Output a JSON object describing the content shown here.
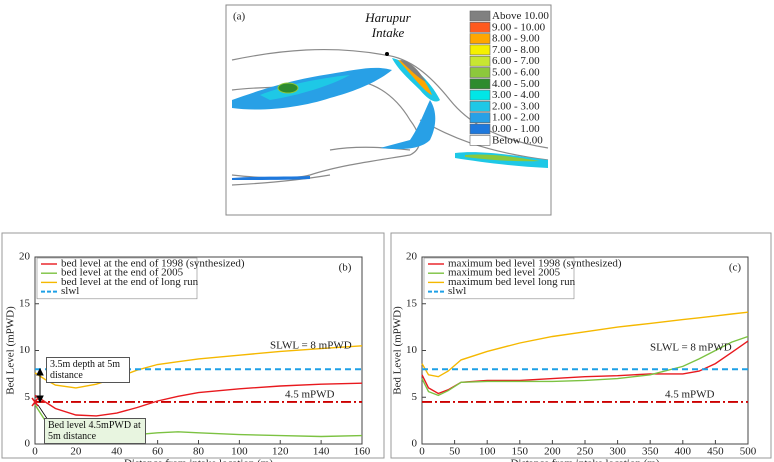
{
  "chart_data": [
    {
      "type": "contour",
      "panel_label": "(a)",
      "title": "Harupur Intake",
      "legend": [
        {
          "name": "Above 10.00",
          "color": "#808080"
        },
        {
          "name": "9.00 - 10.00",
          "color": "#ff5a1e"
        },
        {
          "name": "8.00 - 9.00",
          "color": "#ffa600"
        },
        {
          "name": "7.00 - 8.00",
          "color": "#f5f000"
        },
        {
          "name": "6.00 - 7.00",
          "color": "#c8e632"
        },
        {
          "name": "5.00 - 6.00",
          "color": "#8cc83c"
        },
        {
          "name": "4.00 - 5.00",
          "color": "#2e8b2e"
        },
        {
          "name": "3.00 - 4.00",
          "color": "#00e6e6"
        },
        {
          "name": "2.00 - 3.00",
          "color": "#1ec8e6"
        },
        {
          "name": "1.00 - 2.00",
          "color": "#28a0e6"
        },
        {
          "name": "0.00 - 1.00",
          "color": "#1e78dc"
        },
        {
          "name": "Below 0.00",
          "color": "#ffffff"
        }
      ]
    },
    {
      "type": "line",
      "panel_label": "(b)",
      "xlabel": "Distance from intake location (m)",
      "ylabel": "Bed Level (mPWD)",
      "xlim": [
        0,
        160
      ],
      "xticks": [
        0,
        20,
        40,
        60,
        80,
        100,
        120,
        140,
        160
      ],
      "ylim": [
        0,
        20
      ],
      "yticks": [
        0,
        5,
        10,
        15,
        20
      ],
      "series": [
        {
          "name": "bed level at the end of 1998 (synthesized)",
          "color": "#e8191e",
          "dash": false,
          "x": [
            0,
            5,
            10,
            20,
            30,
            40,
            50,
            60,
            70,
            80,
            100,
            120,
            140,
            160
          ],
          "values": [
            5.2,
            4.5,
            3.8,
            3.1,
            3.0,
            3.3,
            3.9,
            4.6,
            5.1,
            5.5,
            5.9,
            6.2,
            6.4,
            6.5
          ]
        },
        {
          "name": "bed level at the end of 2005",
          "color": "#7cc242",
          "dash": false,
          "x": [
            0,
            5,
            10,
            20,
            30,
            40,
            50,
            60,
            70,
            80,
            100,
            120,
            140,
            160
          ],
          "values": [
            4.2,
            2.5,
            1.4,
            0.8,
            0.7,
            0.8,
            1.0,
            1.2,
            1.3,
            1.2,
            1.0,
            0.9,
            0.8,
            0.9
          ]
        },
        {
          "name": "bed level at the end of long run",
          "color": "#f5b800",
          "dash": false,
          "x": [
            0,
            5,
            10,
            20,
            30,
            40,
            50,
            60,
            70,
            80,
            100,
            120,
            140,
            160
          ],
          "values": [
            7.6,
            6.9,
            6.3,
            6.0,
            6.4,
            7.1,
            7.9,
            8.5,
            8.8,
            9.1,
            9.5,
            9.9,
            10.2,
            10.5
          ]
        },
        {
          "name": "slwl",
          "color": "#1ea0e6",
          "dash": true,
          "x": [
            0,
            160
          ],
          "values": [
            8,
            8
          ]
        }
      ],
      "ref_lines": [
        {
          "value": 4.5,
          "label": "4.5 mPWD",
          "color": "#cc0000"
        }
      ],
      "annotations": [
        "SLWL = 8 mPWD",
        "3.5m depth at 5m distance",
        "Bed level 4.5mPWD at 5m distance"
      ]
    },
    {
      "type": "line",
      "panel_label": "(c)",
      "xlabel": "Distance from intake location (m)",
      "ylabel": "Bed Level (mPWD)",
      "xlim": [
        0,
        500
      ],
      "xticks": [
        0,
        50,
        100,
        150,
        200,
        250,
        300,
        350,
        400,
        450,
        500
      ],
      "ylim": [
        0,
        20
      ],
      "yticks": [
        0,
        5,
        10,
        15,
        20
      ],
      "series": [
        {
          "name": "maximum bed level 1998 (synthesized)",
          "color": "#e8191e",
          "dash": false,
          "x": [
            0,
            10,
            25,
            40,
            60,
            100,
            150,
            200,
            250,
            300,
            350,
            400,
            425,
            450,
            475,
            500
          ],
          "values": [
            7.4,
            6.0,
            5.4,
            5.8,
            6.6,
            6.8,
            6.8,
            7.0,
            7.2,
            7.3,
            7.5,
            7.5,
            7.8,
            8.6,
            9.8,
            11.0
          ]
        },
        {
          "name": "maximum bed level 2005",
          "color": "#7cc242",
          "dash": false,
          "x": [
            0,
            10,
            25,
            40,
            60,
            100,
            150,
            200,
            250,
            300,
            350,
            400,
            425,
            450,
            475,
            500
          ],
          "values": [
            7.0,
            5.6,
            5.2,
            5.7,
            6.6,
            6.7,
            6.7,
            6.7,
            6.8,
            7.0,
            7.4,
            8.3,
            9.1,
            10.0,
            10.9,
            11.5
          ]
        },
        {
          "name": "maximum bed level long run",
          "color": "#f5b800",
          "dash": false,
          "x": [
            0,
            10,
            25,
            40,
            60,
            100,
            150,
            200,
            250,
            300,
            350,
            400,
            425,
            450,
            475,
            500
          ],
          "values": [
            8.6,
            7.4,
            7.2,
            7.8,
            9.0,
            9.9,
            10.8,
            11.5,
            12.0,
            12.5,
            12.9,
            13.3,
            13.5,
            13.7,
            13.9,
            14.1
          ]
        },
        {
          "name": "slwl",
          "color": "#1ea0e6",
          "dash": true,
          "x": [
            0,
            500
          ],
          "values": [
            8,
            8
          ]
        }
      ],
      "ref_lines": [
        {
          "value": 4.5,
          "label": "4.5 mPWD",
          "color": "#cc0000"
        }
      ],
      "annotations": [
        "SLWL = 8 mPWD"
      ]
    }
  ]
}
